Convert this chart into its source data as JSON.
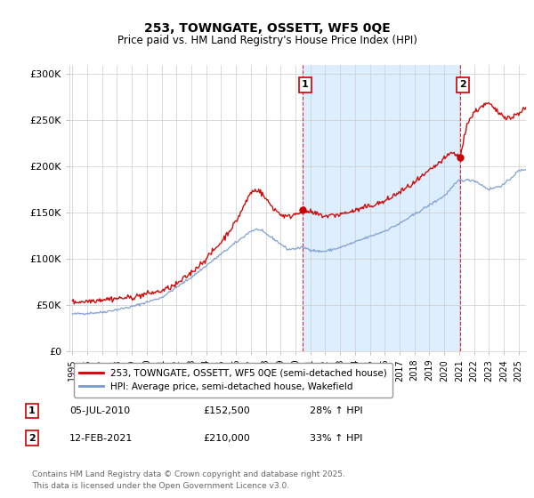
{
  "title": "253, TOWNGATE, OSSETT, WF5 0QE",
  "subtitle": "Price paid vs. HM Land Registry's House Price Index (HPI)",
  "background_color": "#ffffff",
  "plot_background": "#ffffff",
  "shaded_region_color": "#ddeeff",
  "red_line_color": "#cc0000",
  "blue_line_color": "#7799cc",
  "grid_color": "#cccccc",
  "ylim": [
    0,
    310000
  ],
  "yticks": [
    0,
    50000,
    100000,
    150000,
    200000,
    250000,
    300000
  ],
  "ytick_labels": [
    "£0",
    "£50K",
    "£100K",
    "£150K",
    "£200K",
    "£250K",
    "£300K"
  ],
  "xlim_start": 1994.8,
  "xlim_end": 2025.5,
  "xticks": [
    1995,
    1996,
    1997,
    1998,
    1999,
    2000,
    2001,
    2002,
    2003,
    2004,
    2005,
    2006,
    2007,
    2008,
    2009,
    2010,
    2011,
    2012,
    2013,
    2014,
    2015,
    2016,
    2017,
    2018,
    2019,
    2020,
    2021,
    2022,
    2023,
    2024,
    2025
  ],
  "legend_label_red": "253, TOWNGATE, OSSETT, WF5 0QE (semi-detached house)",
  "legend_label_blue": "HPI: Average price, semi-detached house, Wakefield",
  "transaction1_x": 2010.5,
  "transaction1_y": 152500,
  "transaction1_label": "1",
  "transaction2_x": 2021.1,
  "transaction2_y": 210000,
  "transaction2_label": "2",
  "footnote": "Contains HM Land Registry data © Crown copyright and database right 2025.\nThis data is licensed under the Open Government Licence v3.0.",
  "table_rows": [
    {
      "num": "1",
      "date": "05-JUL-2010",
      "price": "£152,500",
      "hpi": "28% ↑ HPI"
    },
    {
      "num": "2",
      "date": "12-FEB-2021",
      "price": "£210,000",
      "hpi": "33% ↑ HPI"
    }
  ]
}
